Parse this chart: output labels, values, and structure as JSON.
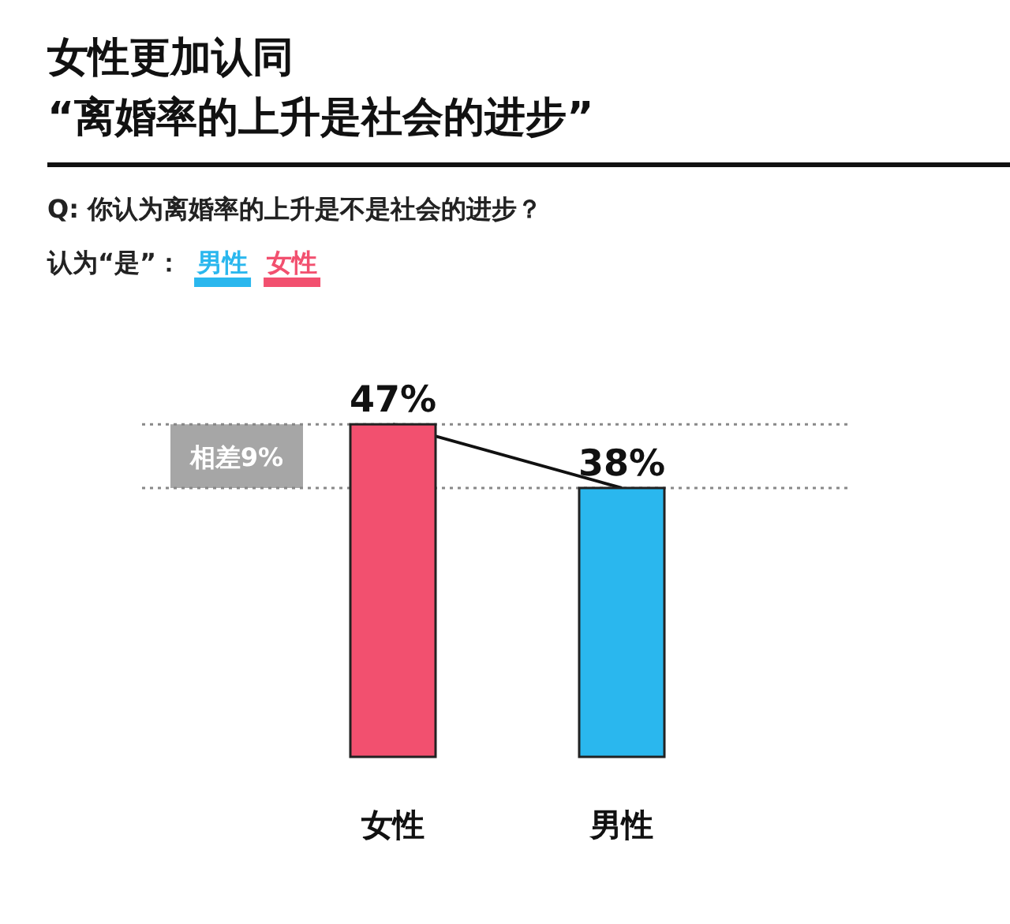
{
  "chart_data": {
    "type": "bar",
    "title": "女性更加认同\n“离婚率的上升是社会的进步”",
    "subtitle": "Q: 你认为离婚率的上升是不是社会的进步？",
    "legend_title": "认为“是”：",
    "legend": "top left",
    "tick_labels": "x",
    "categories": [
      "女性",
      "男性"
    ],
    "series": [
      {
        "name": "男性",
        "color": "#2ab7ee",
        "values": [
          null,
          38
        ],
        "value_labels": [
          null,
          "38%"
        ]
      },
      {
        "name": "女性",
        "color": "#f2506f",
        "values": [
          47,
          null
        ],
        "value_labels": [
          "47%",
          null
        ]
      },
      {
        "type": "line",
        "color": "#111111",
        "values": [
          47,
          38
        ]
      }
    ],
    "ref_lines": [
      {
        "axis": "y",
        "value": 47,
        "color": "#888888",
        "line_style": "dotted"
      },
      {
        "axis": "y",
        "value": 38,
        "color": "#888888",
        "line_style": "dotted"
      }
    ],
    "bands": [
      {
        "axis": "y",
        "from": 38,
        "to": 47,
        "label": "相差9%",
        "color": "#a6a6a6"
      }
    ]
  }
}
